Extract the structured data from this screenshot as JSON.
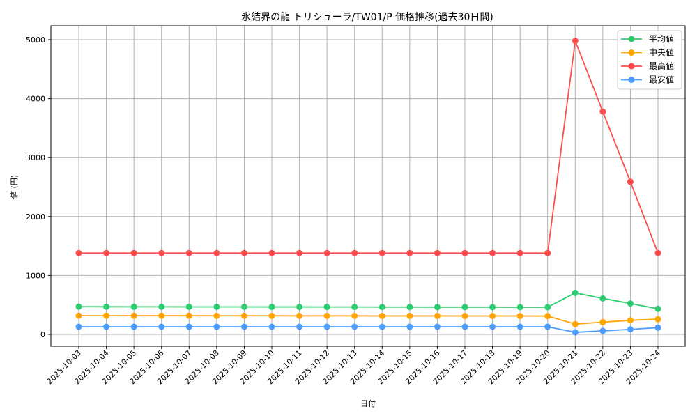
{
  "chart_data": {
    "type": "line",
    "title": "氷結界の龍 トリシューラ/TW01/P 価格推移(過去30日間)",
    "xlabel": "日付",
    "ylabel": "値 (円)",
    "ylim": [
      -230,
      5230
    ],
    "yticks": [
      0,
      1000,
      2000,
      3000,
      4000,
      5000
    ],
    "grid": true,
    "legend_position": "upper right",
    "categories": [
      "2025-10-03",
      "2025-10-04",
      "2025-10-05",
      "2025-10-06",
      "2025-10-07",
      "2025-10-08",
      "2025-10-09",
      "2025-10-10",
      "2025-10-11",
      "2025-10-12",
      "2025-10-13",
      "2025-10-14",
      "2025-10-15",
      "2025-10-16",
      "2025-10-17",
      "2025-10-18",
      "2025-10-19",
      "2025-10-20",
      "2025-10-21",
      "2025-10-22",
      "2025-10-23",
      "2025-10-24"
    ],
    "series": [
      {
        "name": "平均値",
        "color": "#2ecc71",
        "values": [
          470,
          469,
          468,
          468,
          467,
          467,
          467,
          466,
          466,
          465,
          465,
          464,
          464,
          463,
          463,
          463,
          462,
          462,
          705,
          610,
          525,
          435
        ]
      },
      {
        "name": "中央値",
        "color": "#ffa500",
        "values": [
          318,
          318,
          317,
          317,
          317,
          316,
          316,
          316,
          315,
          315,
          315,
          314,
          314,
          314,
          313,
          313,
          313,
          312,
          175,
          208,
          240,
          258
        ]
      },
      {
        "name": "最高値",
        "color": "#ff4d4d",
        "values": [
          1380,
          1380,
          1380,
          1380,
          1380,
          1380,
          1380,
          1380,
          1380,
          1380,
          1380,
          1380,
          1380,
          1380,
          1380,
          1380,
          1380,
          1380,
          4980,
          3780,
          2590,
          1380
        ]
      },
      {
        "name": "最安値",
        "color": "#4d9dff",
        "values": [
          130,
          130,
          130,
          130,
          130,
          130,
          130,
          130,
          130,
          130,
          130,
          130,
          130,
          130,
          130,
          130,
          130,
          130,
          35,
          60,
          85,
          115
        ]
      }
    ]
  },
  "colors": {
    "grid": "#b0b0b0",
    "axis": "#000000",
    "legend_border": "#cccccc"
  }
}
